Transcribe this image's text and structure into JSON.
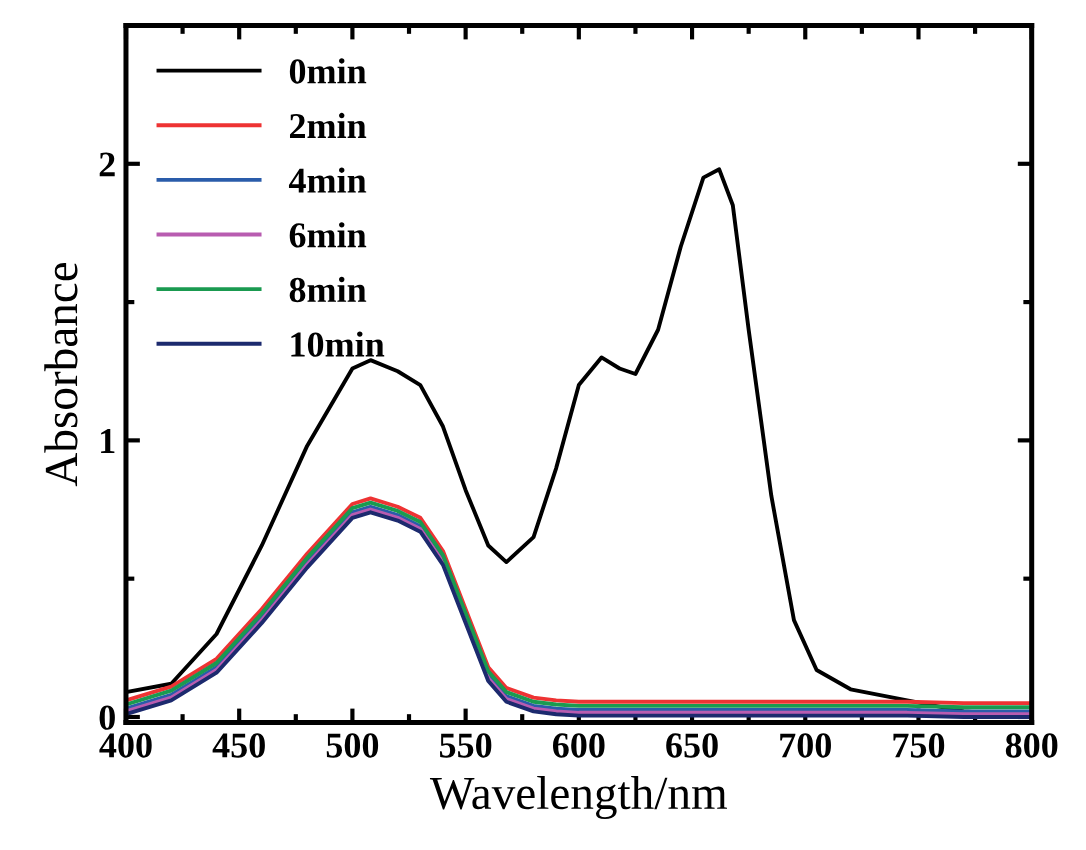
{
  "chart_data": {
    "type": "line",
    "xlabel": "Wavelength/nm",
    "ylabel": "Absorbance",
    "x": [
      400,
      420,
      440,
      460,
      480,
      500,
      508,
      520,
      530,
      540,
      550,
      560,
      568,
      580,
      590,
      600,
      610,
      618,
      625,
      635,
      645,
      655,
      662,
      668,
      675,
      685,
      695,
      705,
      720,
      745,
      770,
      800
    ],
    "series": [
      {
        "name": "0min",
        "color": "#000000",
        "values": [
          0.09,
          0.12,
          0.3,
          0.62,
          0.98,
          1.26,
          1.29,
          1.25,
          1.2,
          1.05,
          0.82,
          0.62,
          0.56,
          0.65,
          0.9,
          1.2,
          1.3,
          1.26,
          1.24,
          1.4,
          1.7,
          1.95,
          1.98,
          1.85,
          1.4,
          0.8,
          0.35,
          0.17,
          0.1,
          0.06,
          0.02,
          0.005
        ]
      },
      {
        "name": "2min",
        "color": "#ee3333",
        "values": [
          0.06,
          0.11,
          0.21,
          0.39,
          0.59,
          0.77,
          0.79,
          0.76,
          0.72,
          0.6,
          0.39,
          0.18,
          0.105,
          0.07,
          0.06,
          0.055,
          0.055,
          0.055,
          0.055,
          0.055,
          0.055,
          0.055,
          0.055,
          0.055,
          0.055,
          0.055,
          0.055,
          0.055,
          0.055,
          0.055,
          0.05,
          0.05
        ]
      },
      {
        "name": "4min",
        "color": "#2a5caa",
        "values": [
          0.03,
          0.08,
          0.18,
          0.36,
          0.56,
          0.74,
          0.76,
          0.73,
          0.69,
          0.57,
          0.36,
          0.15,
          0.075,
          0.04,
          0.03,
          0.025,
          0.025,
          0.025,
          0.025,
          0.025,
          0.025,
          0.025,
          0.025,
          0.025,
          0.025,
          0.025,
          0.025,
          0.025,
          0.025,
          0.025,
          0.02,
          0.02
        ]
      },
      {
        "name": "6min",
        "color": "#b85cb0",
        "values": [
          0.02,
          0.07,
          0.17,
          0.35,
          0.55,
          0.73,
          0.75,
          0.72,
          0.68,
          0.56,
          0.35,
          0.14,
          0.065,
          0.03,
          0.02,
          0.015,
          0.015,
          0.015,
          0.015,
          0.015,
          0.015,
          0.015,
          0.015,
          0.015,
          0.015,
          0.015,
          0.015,
          0.015,
          0.015,
          0.015,
          0.01,
          0.01
        ]
      },
      {
        "name": "8min",
        "color": "#1a9a50",
        "values": [
          0.045,
          0.095,
          0.195,
          0.375,
          0.575,
          0.755,
          0.775,
          0.745,
          0.705,
          0.585,
          0.375,
          0.165,
          0.09,
          0.055,
          0.045,
          0.04,
          0.04,
          0.04,
          0.04,
          0.04,
          0.04,
          0.04,
          0.04,
          0.04,
          0.04,
          0.04,
          0.04,
          0.04,
          0.04,
          0.04,
          0.035,
          0.035
        ]
      },
      {
        "name": "10min",
        "color": "#1c2a6e",
        "values": [
          0.01,
          0.06,
          0.16,
          0.34,
          0.54,
          0.72,
          0.74,
          0.71,
          0.67,
          0.55,
          0.34,
          0.13,
          0.055,
          0.02,
          0.01,
          0.005,
          0.005,
          0.005,
          0.005,
          0.005,
          0.005,
          0.005,
          0.005,
          0.005,
          0.005,
          0.005,
          0.005,
          0.005,
          0.005,
          0.005,
          0.0,
          0.0
        ]
      }
    ],
    "xlim": [
      400,
      800
    ],
    "xticks": [
      400,
      450,
      500,
      550,
      600,
      650,
      700,
      750,
      800
    ],
    "ylim": [
      -0.02,
      2.5
    ],
    "yticks": [
      0,
      1,
      2
    ],
    "legend": "top left",
    "grid": false,
    "line_style": "solid",
    "marker": "none"
  }
}
